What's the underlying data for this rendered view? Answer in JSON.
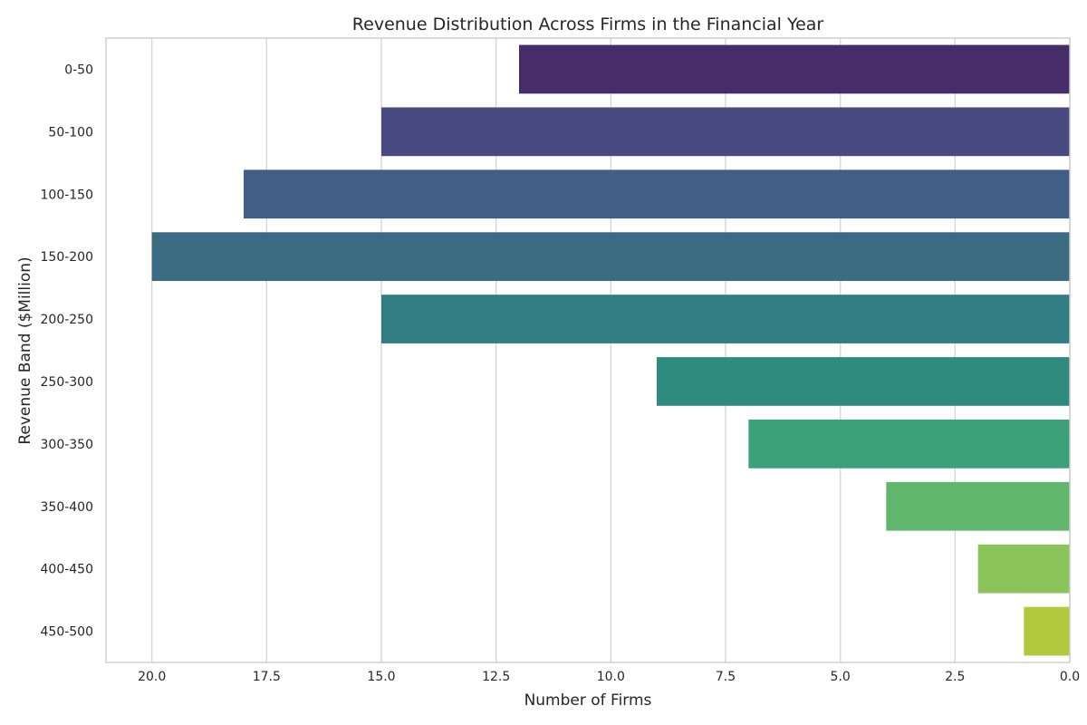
{
  "chart_data": {
    "type": "bar",
    "orientation": "horizontal",
    "title": "Revenue Distribution Across Firms in the Financial Year",
    "xlabel": "Number of Firms",
    "ylabel": "Revenue Band ($Million)",
    "categories": [
      "0-50",
      "50-100",
      "100-150",
      "150-200",
      "200-250",
      "250-300",
      "300-350",
      "350-400",
      "400-450",
      "450-500"
    ],
    "values": [
      12,
      15,
      18,
      20,
      15,
      9,
      7,
      4,
      2,
      1
    ],
    "colors": [
      "#472c6a",
      "#4a4a83",
      "#435e86",
      "#3b6c82",
      "#307d83",
      "#2f8b7d",
      "#3ca078",
      "#62b76e",
      "#8bc45a",
      "#b2c93d"
    ],
    "xlim": [
      21,
      0
    ],
    "x_inverted": true,
    "xticks": [
      20.0,
      17.5,
      15.0,
      12.5,
      10.0,
      7.5,
      5.0,
      2.5,
      0.0
    ],
    "xtick_labels": [
      "20.0",
      "17.5",
      "15.0",
      "12.5",
      "10.0",
      "7.5",
      "5.0",
      "2.5",
      "0.0"
    ],
    "grid": "vertical"
  }
}
